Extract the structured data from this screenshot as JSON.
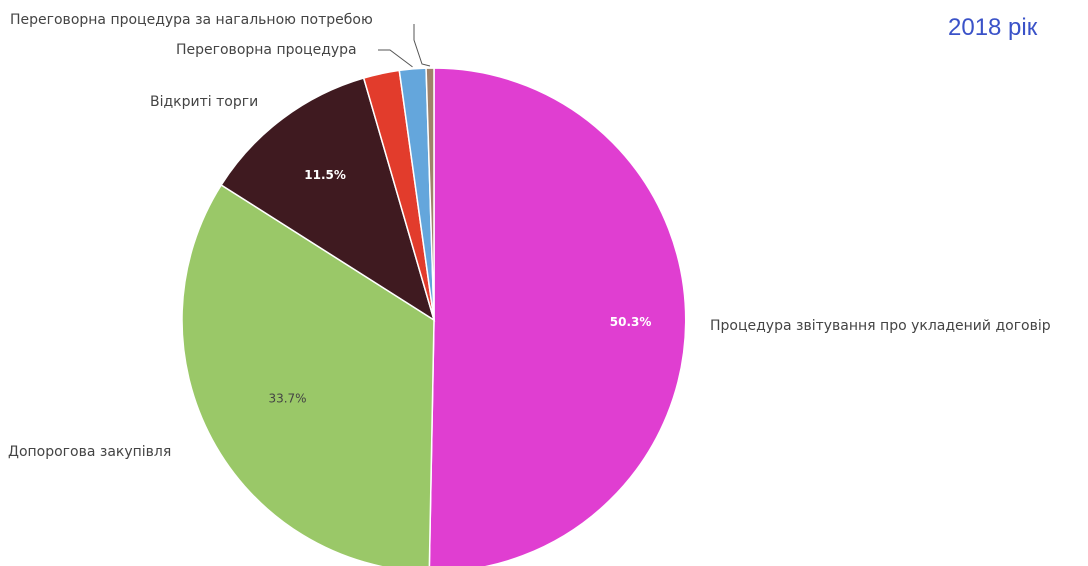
{
  "chart_data": {
    "type": "pie",
    "title": "2018 рік",
    "slices": [
      {
        "label": "Процедура звітування про укладений договір",
        "value": 50.3,
        "value_label": "50.3%",
        "color": "#e03ed1"
      },
      {
        "label": "Допорогова закупівля",
        "value": 33.7,
        "value_label": "33.7%",
        "color": "#9ac868"
      },
      {
        "label": "Відкриті торги",
        "value": 11.5,
        "value_label": "11.5%",
        "color": "#3f1a20"
      },
      {
        "label": "",
        "value": 2.3,
        "value_label": "",
        "color": "#e23c2c"
      },
      {
        "label": "Переговорна процедура",
        "value": 1.7,
        "value_label": "",
        "color": "#64a6dc"
      },
      {
        "label": "Переговорна процедура за нагальною потребою",
        "value": 0.5,
        "value_label": "",
        "color": "#a0826a"
      }
    ]
  },
  "colors": {
    "title": "#3a52c8",
    "pct_light": "#ffffff",
    "pct_dark": "#444444"
  }
}
